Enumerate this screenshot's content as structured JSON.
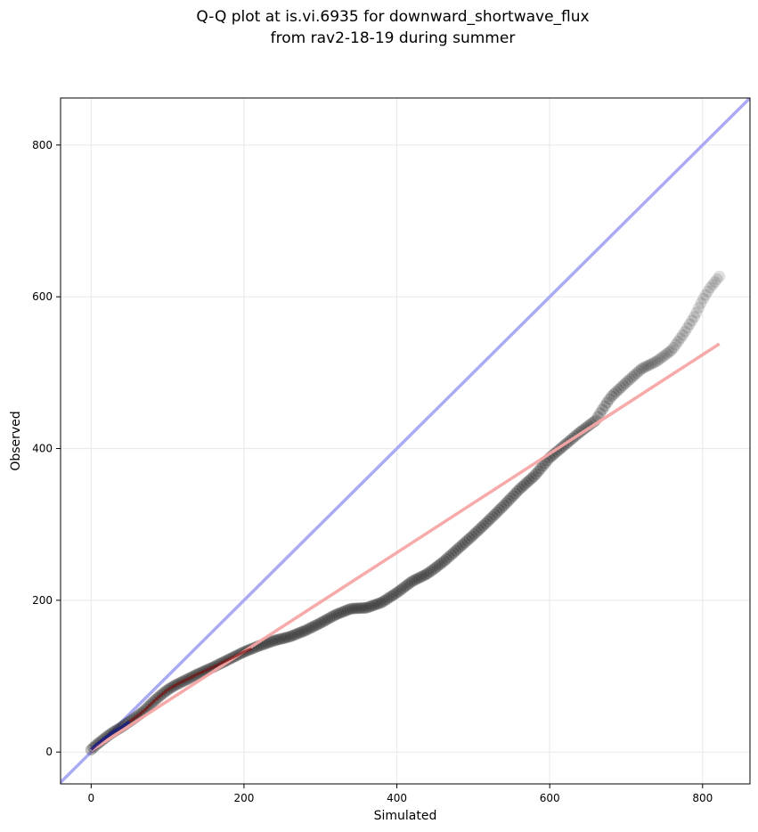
{
  "chart_data": {
    "type": "scatter",
    "title_lines": [
      "Q-Q plot at is.vi.6935 for downward_shortwave_flux",
      "from rav2-18-19 during summer"
    ],
    "xlabel": "Simulated",
    "ylabel": "Observed",
    "xlim": [
      -40,
      862
    ],
    "ylim": [
      -42,
      862
    ],
    "xticks": [
      0,
      200,
      400,
      600,
      800
    ],
    "yticks": [
      0,
      200,
      400,
      600,
      800
    ],
    "grid": true,
    "colors": {
      "points": "#222222",
      "identity_line": "#aaaaf5",
      "fit_line": "#f7a6a6",
      "low_segment": "#1a1a80",
      "mid_segment": "#7a1010",
      "grid": "#ebebeb"
    },
    "reference_lines": [
      {
        "role": "identity",
        "x": [
          -40,
          862
        ],
        "y": [
          -40,
          862
        ]
      },
      {
        "role": "fit",
        "x": [
          0,
          822
        ],
        "y": [
          2,
          538
        ]
      }
    ],
    "quantile_curve": {
      "x": [
        0,
        5,
        10,
        20,
        30,
        40,
        50,
        60,
        70,
        80,
        90,
        100,
        110,
        120,
        140,
        160,
        180,
        200,
        220,
        240,
        260,
        280,
        300,
        320,
        340,
        360,
        380,
        400,
        420,
        440,
        460,
        480,
        500,
        520,
        540,
        560,
        580,
        600,
        620,
        640,
        660,
        670,
        680,
        700,
        720,
        740,
        760,
        775,
        790,
        800,
        810,
        822
      ],
      "y": [
        3,
        8,
        12,
        20,
        27,
        33,
        40,
        47,
        55,
        65,
        74,
        82,
        88,
        93,
        103,
        112,
        122,
        132,
        140,
        147,
        152,
        160,
        170,
        181,
        189,
        190,
        197,
        210,
        225,
        235,
        250,
        268,
        286,
        305,
        325,
        346,
        364,
        388,
        405,
        422,
        437,
        453,
        468,
        487,
        505,
        515,
        530,
        551,
        575,
        596,
        612,
        627
      ]
    },
    "point_spacing": 3
  }
}
